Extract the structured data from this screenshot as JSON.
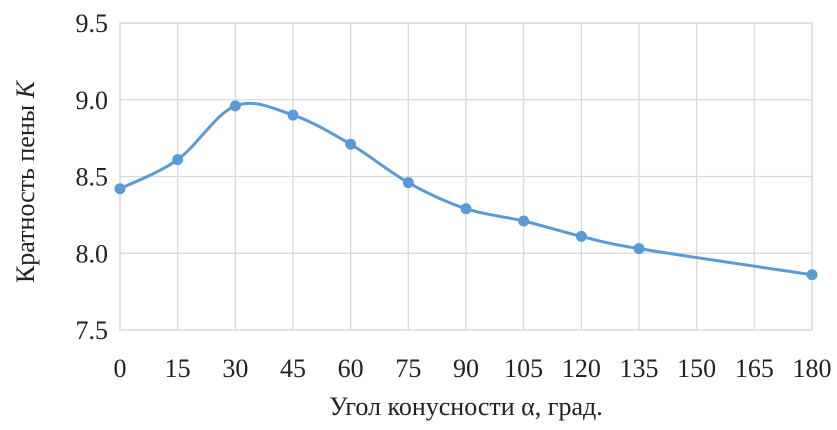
{
  "chart_data": {
    "type": "line",
    "title": "",
    "xlabel": "Угол конусности α, град.",
    "ylabel_main": "Кратность пены ",
    "ylabel_var": "K",
    "x_ticks": [
      "0",
      "15",
      "30",
      "45",
      "60",
      "75",
      "90",
      "105",
      "120",
      "135",
      "150",
      "165",
      "180"
    ],
    "y_ticks": [
      "7.5",
      "8.0",
      "8.5",
      "9.0",
      "9.5"
    ],
    "xlim": [
      0,
      180
    ],
    "ylim": [
      7.5,
      9.5
    ],
    "grid": true,
    "smooth": true,
    "series": [
      {
        "color": "#5b9bd5",
        "x": [
          0,
          15,
          30,
          45,
          60,
          75,
          90,
          105,
          120,
          135,
          180
        ],
        "y": [
          8.42,
          8.61,
          8.96,
          8.9,
          8.71,
          8.46,
          8.29,
          8.21,
          8.11,
          8.03,
          7.86
        ]
      }
    ]
  }
}
